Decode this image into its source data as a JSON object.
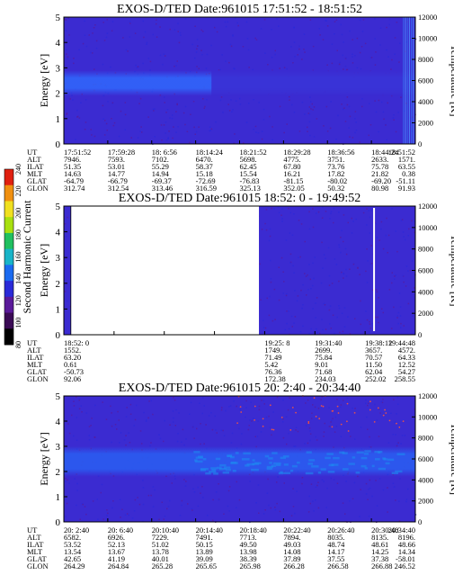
{
  "chart_data": {
    "type": "heatmap",
    "colorbar": {
      "label": "Second Harmonic Current",
      "ticks": [
        "240",
        "220",
        "200",
        "180",
        "160",
        "140",
        "120",
        "100",
        "80"
      ],
      "colors": [
        "#000000",
        "#3a0a55",
        "#5a1a9a",
        "#2a2ad8",
        "#1a6af0",
        "#18b4c8",
        "#20c060",
        "#a8e010",
        "#f0e020",
        "#f09010",
        "#e02010"
      ]
    },
    "panels": [
      {
        "title": "EXOS-D/TED   Date:961015  17:51:52 - 18:51:52",
        "ylabel": "Energy [eV]",
        "y2label": "Temperature [K]",
        "ylim": [
          0,
          5
        ],
        "yticks": [
          "0",
          "1",
          "2",
          "3",
          "4",
          "5"
        ],
        "y2ticks": [
          "0",
          "2000",
          "4000",
          "6000",
          "8000",
          "10000",
          "12000"
        ],
        "band": {
          "lo": 1.9,
          "hi": 2.9,
          "fade_end": 0.42,
          "fade_strength": 0.25
        },
        "gap_fraction": null,
        "stripes_start": 0.965,
        "row_labels": [
          "UT",
          "ALT",
          "ILAT",
          "MLT",
          "GLAT",
          "GLON"
        ],
        "columns": [
          [
            "17:51:52",
            "7946.",
            "51.35",
            "14.63",
            "-64.79",
            "312.74"
          ],
          [
            "17:59:28",
            "7593.",
            "53.01",
            "14.77",
            "-66.79",
            "312.54"
          ],
          [
            "18: 6:56",
            "7102.",
            "55.29",
            "14.94",
            "-69.37",
            "313.46"
          ],
          [
            "18:14:24",
            "6470.",
            "58.37",
            "15.18",
            "-72.69",
            "316.59"
          ],
          [
            "18:21:52",
            "5698.",
            "62.45",
            "15.54",
            "-76.83",
            "325.13"
          ],
          [
            "18:29:28",
            "4775.",
            "67.80",
            "16.21",
            "-81.15",
            "352.05"
          ],
          [
            "18:36:56",
            "3751.",
            "73.76",
            "17.82",
            "-80.02",
            "50.32"
          ],
          [
            "18:44:24",
            "2633.",
            "75.78",
            "21.82",
            "-69.20",
            "80.98"
          ],
          [
            "18:51:52",
            "1571.",
            "63.55",
            "0.38",
            "-51.11",
            "91.93"
          ]
        ]
      },
      {
        "title": "EXOS-D/TED   Date:961015  18:52: 0 - 19:49:52",
        "ylabel": "Energy [eV]",
        "y2label": "Temperature [K]",
        "ylim": [
          0,
          5
        ],
        "yticks": [
          "0",
          "1",
          "2",
          "3",
          "4",
          "5"
        ],
        "y2ticks": [
          "0",
          "2000",
          "4000",
          "6000",
          "8000",
          "10000",
          "12000"
        ],
        "band": null,
        "gap_fraction": [
          0.02,
          0.555
        ],
        "white_line": 0.88,
        "stripes_start": null,
        "row_labels": [
          "UT",
          "ALT",
          "ILAT",
          "MLT",
          "GLAT",
          "GLON"
        ],
        "columns": [
          [
            "18:52: 0",
            "1552.",
            "63.20",
            "0.61",
            "-50.73",
            "92.06"
          ],
          [
            "",
            "",
            "",
            "",
            "",
            ""
          ],
          [
            "",
            "",
            "",
            "",
            "",
            ""
          ],
          [
            "",
            "",
            "",
            "",
            "",
            ""
          ],
          [
            "19:25: 8",
            "1749.",
            "71.49",
            "5.42",
            "76.36",
            "172.38"
          ],
          [
            "19:31:40",
            "2699.",
            "75.84",
            "9.01",
            "71.68",
            "234.03"
          ],
          [
            "19:38:12",
            "3657.",
            "70.57",
            "11.50",
            "62.04",
            "252.02"
          ],
          [
            "19:44:48",
            "4572.",
            "64.33",
            "12.52",
            "54.27",
            "258.55"
          ]
        ]
      },
      {
        "title": "EXOS-D/TED   Date:961015  20: 2:40 - 20:34:40",
        "ylabel": "Energy [eV]",
        "y2label": "Temperature [K]",
        "ylim": [
          0,
          5
        ],
        "yticks": [
          "0",
          "1",
          "2",
          "3",
          "4",
          "5"
        ],
        "y2ticks": [
          "0",
          "2000",
          "4000",
          "6000",
          "8000",
          "10000",
          "12000"
        ],
        "band": {
          "lo": 1.8,
          "hi": 3.0,
          "fade_end": 0.0,
          "fade_strength": 0.0
        },
        "gap_fraction": null,
        "stripes_start": null,
        "row_labels": [
          "UT",
          "ALT",
          "ILAT",
          "MLT",
          "GLAT",
          "GLON"
        ],
        "columns": [
          [
            "20: 2:40",
            "6582.",
            "53.52",
            "13.54",
            "42.65",
            "264.29"
          ],
          [
            "20: 6:40",
            "6926.",
            "52.13",
            "13.67",
            "41.19",
            "264.84"
          ],
          [
            "20:10:40",
            "7229.",
            "51.02",
            "13.78",
            "40.01",
            "265.28"
          ],
          [
            "20:14:40",
            "7491.",
            "50.15",
            "13.89",
            "39.09",
            "265.65"
          ],
          [
            "20:18:40",
            "7713.",
            "49.50",
            "13.98",
            "38.39",
            "265.98"
          ],
          [
            "20:22:40",
            "7894.",
            "49.03",
            "14.08",
            "37.89",
            "266.28"
          ],
          [
            "20:26:40",
            "8035.",
            "48.74",
            "14.17",
            "37.55",
            "266.58"
          ],
          [
            "20:30:40",
            "8135.",
            "48.61",
            "14.25",
            "37.38",
            "266.88"
          ],
          [
            "20:34:40",
            "8196.",
            "48.66",
            "14.34",
            "-58.01",
            "246.52"
          ]
        ]
      }
    ]
  }
}
